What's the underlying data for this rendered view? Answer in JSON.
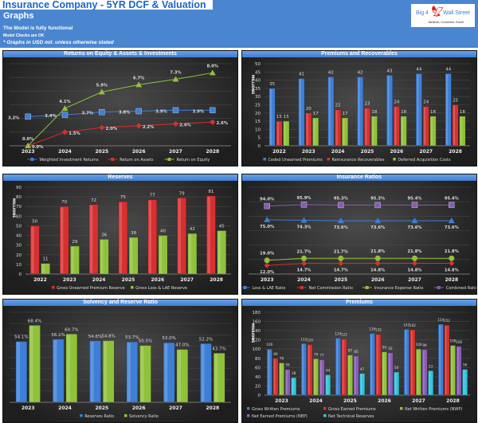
{
  "header": {
    "title": "Insurance Company - 5YR DCF & Valuation",
    "subtitle": "Graphs",
    "status": "The Model is fully functional",
    "checks": "Model Checks are OK",
    "note": "* Graphs in USD mil. unless otherwise stated"
  },
  "logo": {
    "name_left": "Big 4",
    "name_right": "Wall Street",
    "tagline": "Believe, Conceive, Excel"
  },
  "chart_data": [
    {
      "type": "line",
      "title": "Returns on Equity & Assets & Investments",
      "categories": [
        "2023",
        "2024",
        "2025",
        "2026",
        "2027",
        "2028"
      ],
      "ylim": [
        0,
        9
      ],
      "show_y_axis": false,
      "format": "percent",
      "series": [
        {
          "name": "Weighted Investment Returns",
          "color": "#3d7fd6",
          "marker": "square",
          "values": [
            3.2,
            3.4,
            3.7,
            3.8,
            3.9,
            3.9
          ]
        },
        {
          "name": "Return on Assets",
          "color": "#d83030",
          "marker": "diamond",
          "values": [
            0.0,
            1.5,
            2.0,
            2.2,
            2.4,
            2.6
          ]
        },
        {
          "name": "Return on Equity",
          "color": "#8fc13a",
          "marker": "triangle",
          "values": [
            0.0,
            4.1,
            5.9,
            6.7,
            7.3,
            8.0
          ]
        }
      ]
    },
    {
      "type": "bar",
      "title": "Premiums and Recoverables",
      "categories": [
        "2022",
        "2023",
        "2024",
        "2025",
        "2026",
        "2027",
        "2028"
      ],
      "ylim": [
        0,
        50
      ],
      "ytick": 5,
      "show_y_axis": true,
      "ylabel": "MILLIONS",
      "format": "int",
      "series": [
        {
          "name": "Ceded Unearned Premiums",
          "color": "#3d7fd6",
          "values": [
            35,
            41,
            42,
            42,
            43,
            44,
            44
          ]
        },
        {
          "name": "Reinsurance Recoverables",
          "color": "#d83030",
          "values": [
            15,
            20,
            22,
            23,
            24,
            24,
            25
          ]
        },
        {
          "name": "Deferred Acquisition Costs",
          "color": "#8fc13a",
          "values": [
            15,
            17,
            17,
            18,
            18,
            18,
            18
          ]
        }
      ]
    },
    {
      "type": "bar",
      "title": "Reserves",
      "categories": [
        "2022",
        "2023",
        "2024",
        "2025",
        "2026",
        "2027",
        "2028"
      ],
      "ylim": [
        0,
        90
      ],
      "ytick": 10,
      "show_y_axis": true,
      "ylabel": "MILLIONS",
      "format": "int",
      "series": [
        {
          "name": "Gross Unearned Premium Reserve",
          "color": "#d83030",
          "values": [
            50,
            70,
            72,
            75,
            77,
            79,
            81
          ]
        },
        {
          "name": "Gross Loss & LAE Reserve",
          "color": "#8fc13a",
          "values": [
            11,
            29,
            36,
            38,
            40,
            42,
            45
          ]
        }
      ]
    },
    {
      "type": "line",
      "title": "Insurance Ratios",
      "categories": [
        "2023",
        "2024",
        "2025",
        "2026",
        "2027",
        "2028"
      ],
      "ylim": [
        0,
        120
      ],
      "show_y_axis": false,
      "format": "percent",
      "series": [
        {
          "name": "Loss & LAE Ratio",
          "color": "#3d7fd6",
          "marker": "triangle",
          "values": [
            75.0,
            74.3,
            73.6,
            73.6,
            73.6,
            73.6
          ]
        },
        {
          "name": "Net Commission Ratio",
          "color": "#d83030",
          "marker": "diamond",
          "values": [
            12.0,
            14.7,
            14.7,
            14.8,
            14.8,
            14.8
          ]
        },
        {
          "name": "Insurance Expense Ratio",
          "color": "#8fc13a",
          "marker": "circle",
          "values": [
            19.0,
            21.7,
            21.7,
            21.8,
            21.8,
            21.8
          ]
        },
        {
          "name": "Combined Ratio",
          "color": "#8a5bb5",
          "marker": "square",
          "values": [
            94.0,
            95.9,
            95.3,
            95.3,
            95.4,
            95.4
          ]
        }
      ]
    },
    {
      "type": "bar",
      "title": "Solvency and Reserve Ratio",
      "categories": [
        "2023",
        "2024",
        "2025",
        "2026",
        "2027",
        "2028"
      ],
      "ylim": [
        0,
        80
      ],
      "ytick": 10,
      "show_y_axis": false,
      "format": "percent",
      "series": [
        {
          "name": "Reserves Ratio",
          "color": "#3d7fd6",
          "values": [
            54.1,
            56.1,
            54.6,
            53.7,
            53.0,
            52.2
          ]
        },
        {
          "name": "Solvency Ratio",
          "color": "#8fc13a",
          "values": [
            68.4,
            60.7,
            54.8,
            50.5,
            47.0,
            43.7
          ]
        }
      ]
    },
    {
      "type": "bar",
      "title": "Premiums",
      "categories": [
        "2023",
        "2024",
        "2025",
        "2026",
        "2027",
        "2028"
      ],
      "ylim": [
        0,
        180
      ],
      "ytick": 20,
      "show_y_axis": true,
      "ylabel": "MILLIONS",
      "format": "int",
      "series": [
        {
          "name": "Gross Written Premiums",
          "color": "#3d7fd6",
          "values": [
            100,
            112,
            124,
            134,
            143,
            154
          ]
        },
        {
          "name": "Gross Earned Premiums",
          "color": "#d83030",
          "values": [
            80,
            110,
            122,
            132,
            142,
            152
          ]
        },
        {
          "name": "Net Written Premiums (NWP)",
          "color": "#8fc13a",
          "values": [
            70,
            79,
            87,
            94,
            100,
            108
          ]
        },
        {
          "name": "Net Earned Premiums (NEP)",
          "color": "#8a5bb5",
          "values": [
            56,
            77,
            85,
            92,
            99,
            106
          ]
        },
        {
          "name": "Net Technical Reserves",
          "color": "#33c4dc",
          "values": [
            38,
            44,
            47,
            50,
            53,
            56
          ]
        }
      ]
    }
  ]
}
